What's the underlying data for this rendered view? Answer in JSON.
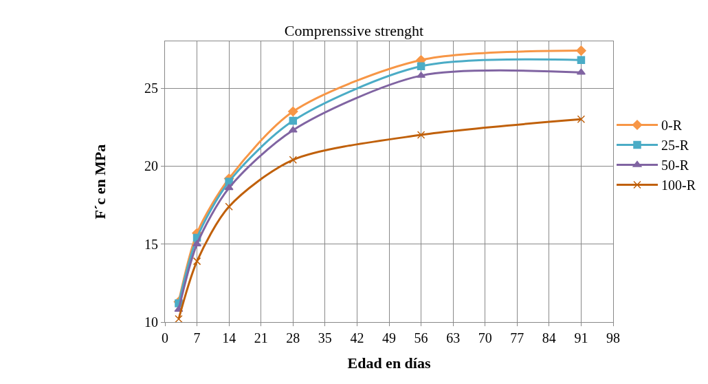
{
  "chart_data": {
    "type": "line",
    "title": "Comprenssive strenght",
    "xlabel": "Edad en días",
    "ylabel": "F´c en MPa",
    "x": [
      3,
      7,
      14,
      28,
      56,
      91
    ],
    "series": [
      {
        "name": "0-R",
        "color": "#f79646",
        "marker": "diamond",
        "values": [
          11.3,
          15.7,
          19.2,
          23.5,
          26.8,
          27.4
        ]
      },
      {
        "name": "25-R",
        "color": "#4bacc6",
        "marker": "square",
        "values": [
          11.2,
          15.4,
          19.0,
          22.9,
          26.4,
          26.8
        ]
      },
      {
        "name": "50-R",
        "color": "#8064a2",
        "marker": "triangle",
        "values": [
          10.8,
          15.0,
          18.6,
          22.3,
          25.8,
          26.0
        ]
      },
      {
        "name": "100-R",
        "color": "#c0600a",
        "marker": "cross",
        "values": [
          10.2,
          13.9,
          17.4,
          20.4,
          22.0,
          23.0
        ]
      }
    ],
    "xlim": [
      0,
      98
    ],
    "xticks": [
      0,
      7,
      14,
      21,
      28,
      35,
      42,
      49,
      56,
      63,
      70,
      77,
      84,
      91,
      98
    ],
    "ylim": [
      10,
      28
    ],
    "yticks": [
      10,
      15,
      20,
      25
    ],
    "grid": true,
    "legend": "right"
  }
}
